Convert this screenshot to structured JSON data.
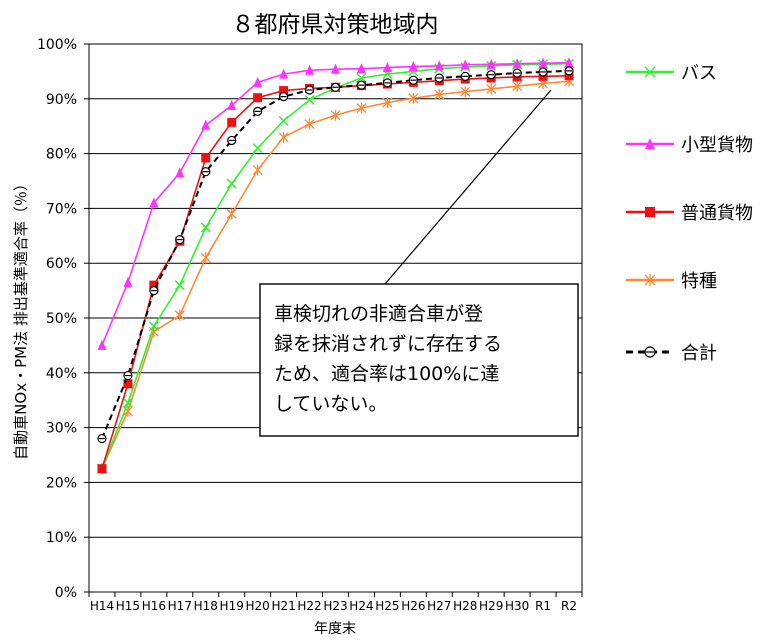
{
  "chart_data": {
    "type": "line",
    "title": "８都府県対策地域内",
    "xlabel": "年度末",
    "ylabel": "自動車NOx・PM法 排出基準適合率（％）",
    "ylim": [
      0,
      100
    ],
    "y_ticks": [
      "0%",
      "10%",
      "20%",
      "30%",
      "40%",
      "50%",
      "60%",
      "70%",
      "80%",
      "90%",
      "100%"
    ],
    "categories": [
      "H14",
      "H15",
      "H16",
      "H17",
      "H18",
      "H19",
      "H20",
      "H21",
      "H22",
      "H23",
      "H24",
      "H25",
      "H26",
      "H27",
      "H28",
      "H29",
      "H30",
      "R1",
      "R2"
    ],
    "grid": true,
    "legend_placement": "right",
    "series": [
      {
        "name": "バス",
        "color": "#33ee33",
        "marker": "x",
        "dashed": false,
        "values": [
          22.5,
          34.5,
          48.5,
          56.0,
          66.5,
          74.5,
          81.0,
          86.0,
          89.8,
          92.0,
          93.8,
          94.5,
          95.0,
          95.5,
          95.8,
          96.0,
          96.2,
          96.3,
          96.4
        ]
      },
      {
        "name": "小型貨物",
        "color": "#ff33ff",
        "marker": "triangle",
        "dashed": false,
        "values": [
          45.0,
          56.5,
          71.0,
          76.5,
          85.2,
          88.8,
          93.0,
          94.5,
          95.2,
          95.4,
          95.5,
          95.7,
          95.9,
          96.0,
          96.2,
          96.3,
          96.4,
          96.5,
          96.6
        ]
      },
      {
        "name": "普通貨物",
        "color": "#ee1111",
        "marker": "square",
        "dashed": false,
        "values": [
          22.5,
          38.0,
          56.0,
          64.0,
          79.2,
          85.7,
          90.2,
          91.5,
          91.9,
          92.1,
          92.4,
          92.7,
          93.0,
          93.3,
          93.6,
          93.8,
          94.0,
          94.1,
          94.2
        ]
      },
      {
        "name": "特種",
        "color": "#ff8833",
        "marker": "star",
        "dashed": false,
        "values": [
          22.5,
          33.0,
          47.5,
          50.5,
          61.0,
          69.0,
          77.0,
          83.0,
          85.4,
          87.0,
          88.3,
          89.3,
          90.1,
          90.8,
          91.3,
          91.8,
          92.3,
          92.8,
          93.2
        ]
      },
      {
        "name": "合計",
        "color": "#000000",
        "marker": "circle",
        "dashed": true,
        "values": [
          28.0,
          39.5,
          55.0,
          64.3,
          76.7,
          82.4,
          87.7,
          90.4,
          91.6,
          92.1,
          92.5,
          92.9,
          93.4,
          93.8,
          94.1,
          94.4,
          94.7,
          94.9,
          95.1
        ]
      }
    ],
    "annotation": {
      "lines": [
        "車検切れの非適合車が登",
        "録を抹消されずに存在する",
        "ため、適合率は100%に達",
        "していない。"
      ]
    }
  }
}
